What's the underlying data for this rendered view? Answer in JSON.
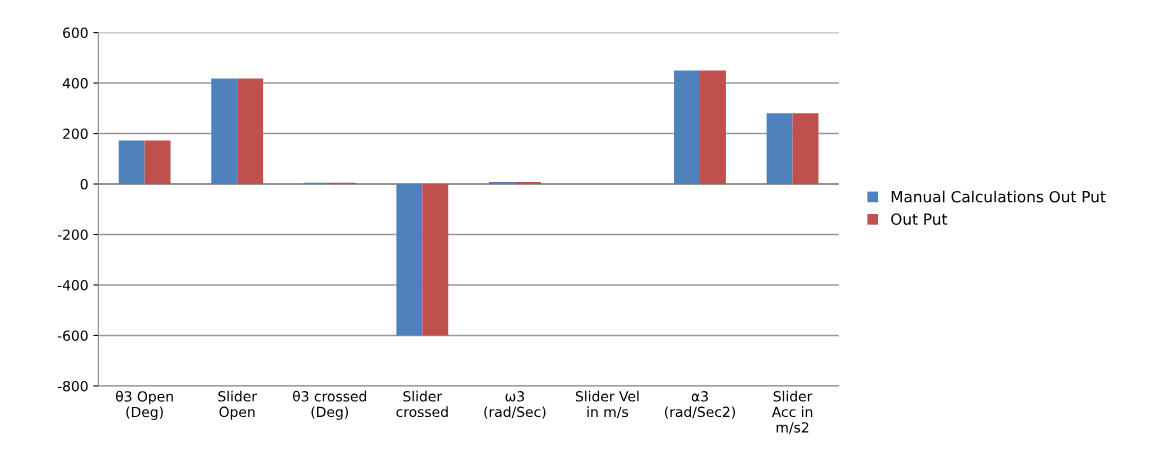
{
  "chart_data": {
    "type": "bar",
    "categories": [
      "θ3 Open\n(Deg)",
      "Slider\nOpen",
      "θ3 crossed\n(Deg)",
      "Slider\ncrossed",
      "ω3\n(rad/Sec)",
      "Slider Vel\nin m/s",
      "α3\n(rad/Sec2)",
      "Slider\nAcc in\nm/s2"
    ],
    "series": [
      {
        "name": "Manual Calculations Out Put",
        "color": "#4f81bd",
        "values": [
          172,
          418,
          5,
          -600,
          8,
          0,
          450,
          280
        ]
      },
      {
        "name": "Out Put",
        "color": "#c0504d",
        "values": [
          172,
          418,
          5,
          -600,
          8,
          0,
          450,
          280
        ]
      }
    ],
    "ylim": [
      -800,
      600
    ],
    "yticks": [
      -800,
      -600,
      -400,
      -200,
      0,
      200,
      400,
      600
    ],
    "grid": "y",
    "legend": "right"
  }
}
